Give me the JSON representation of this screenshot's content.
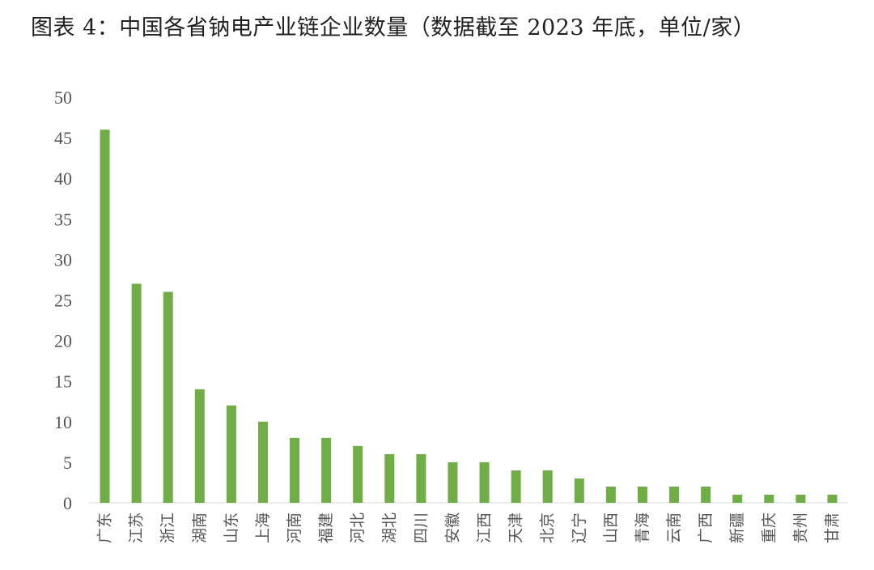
{
  "title": "图表 4：中国各省钠电产业链企业数量（数据截至 2023 年底，单位/家）",
  "chart_data": {
    "type": "bar",
    "title": "图表 4：中国各省钠电产业链企业数量（数据截至 2023 年底，单位/家）",
    "xlabel": "",
    "ylabel": "",
    "ylim": [
      0,
      50
    ],
    "yticks": [
      0,
      5,
      10,
      15,
      20,
      25,
      30,
      35,
      40,
      45,
      50
    ],
    "grid": false,
    "legend": "none",
    "bar_color": "#70AD47",
    "categories": [
      "广东",
      "江苏",
      "浙江",
      "湖南",
      "山东",
      "上海",
      "河南",
      "福建",
      "河北",
      "湖北",
      "四川",
      "安徽",
      "江西",
      "天津",
      "北京",
      "辽宁",
      "山西",
      "青海",
      "云南",
      "广西",
      "新疆",
      "重庆",
      "贵州",
      "甘肃"
    ],
    "values": [
      46,
      27,
      26,
      14,
      12,
      10,
      8,
      8,
      7,
      6,
      6,
      5,
      5,
      4,
      4,
      3,
      2,
      2,
      2,
      2,
      1,
      1,
      1,
      1
    ]
  }
}
